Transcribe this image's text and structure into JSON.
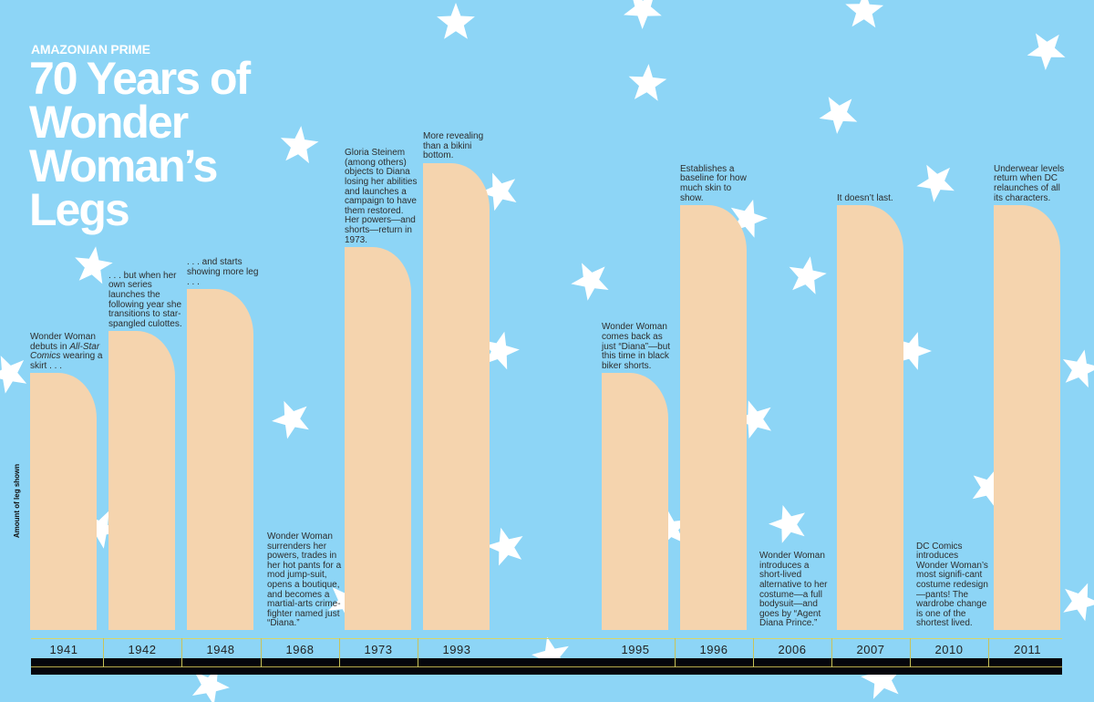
{
  "header": {
    "kicker": "AMAZONIAN PRIME",
    "title_lines": [
      "70 Years of",
      "Wonder",
      "Woman’s",
      "Legs"
    ]
  },
  "colors": {
    "background": "#8dd5f6",
    "bar": "#f5d4ae",
    "star": "#ffffff",
    "axis": "#05050c"
  },
  "chart_data": {
    "type": "bar",
    "title": "70 Years of Wonder Woman’s Legs",
    "xlabel": "",
    "ylabel": "Amount of leg shown",
    "ylim": [
      0,
      100
    ],
    "categories": [
      "1941",
      "1942",
      "1948",
      "1968",
      "1973",
      "1993",
      "1995",
      "1996",
      "2006",
      "2007",
      "2010",
      "2011"
    ],
    "values": [
      55,
      64,
      73,
      0,
      82,
      100,
      55,
      91,
      0,
      91,
      0,
      91
    ],
    "annotations": [
      "Wonder Woman debuts in All-Star Comics wearing a skirt . . .",
      ". . . but when her own series launches the following year she transitions to star-spangled culottes.",
      ". . . and starts showing more leg . . .",
      "Wonder Woman surrenders her powers, trades in her hot pants for a mod jump-suit, opens a boutique, and becomes a martial-arts crime-fighter named just “Diana.”",
      "Gloria Steinem (among others) objects to Diana losing her abilities and launches a campaign to have them restored. Her powers—and shorts—return in 1973.",
      "More revealing than a bikini bottom.",
      "Wonder Woman comes back as just “Diana”—but this time in black biker shorts.",
      "Establishes a baseline for how much skin to show.",
      "Wonder Woman introduces a short-lived alternative to her costume—a full bodysuit—and goes by “Agent Diana Prince.”",
      "It doesn’t last.",
      "DC Comics introduces Wonder Woman’s most signifi-cant costume redesign—pants! The wardrobe change is one of the shortest lived.",
      "Underwear levels return when DC relaunches of all its characters."
    ]
  }
}
